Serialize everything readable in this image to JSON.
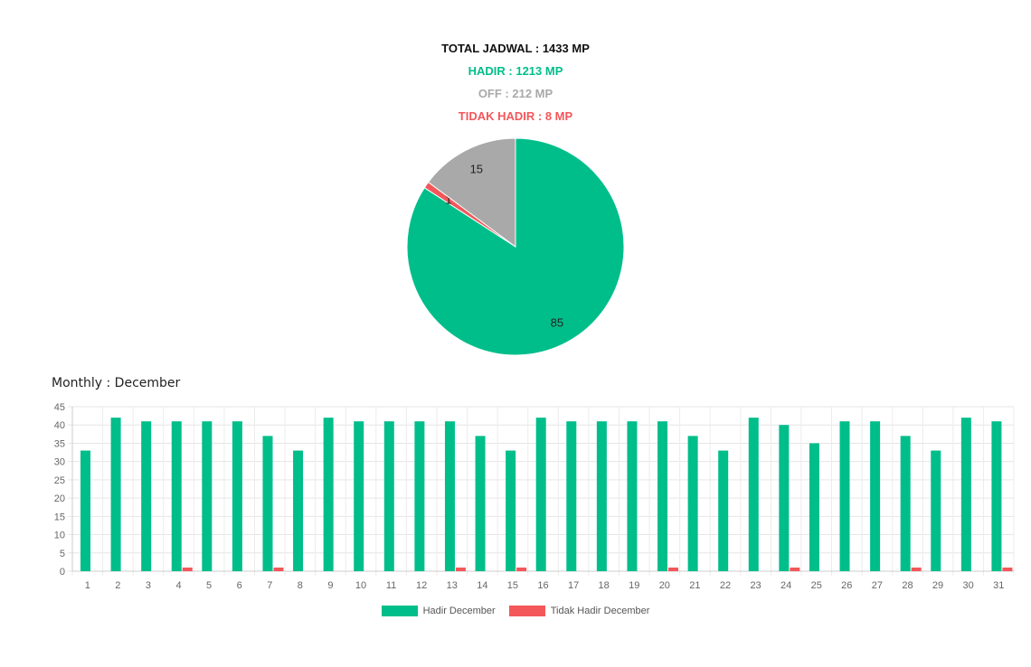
{
  "summary": {
    "total": "TOTAL JADWAL : 1433 MP",
    "hadir": "HADIR : 1213 MP",
    "off": "OFF : 212 MP",
    "tidak_hadir": "TIDAK HADIR : 8 MP"
  },
  "monthly_title": "Monthly : December",
  "colors": {
    "hadir": "#00BE8A",
    "off": "#A9A9A9",
    "tidak_hadir": "#F3575A",
    "total": "#111111"
  },
  "chart_data": [
    {
      "type": "pie",
      "slices": [
        {
          "label": "Hadir",
          "value": 85,
          "color": "#00BE8A"
        },
        {
          "label": "Tidak Hadir",
          "value": 1,
          "color": "#F3575A"
        },
        {
          "label": "Off",
          "value": 15,
          "color": "#A9A9A9"
        }
      ]
    },
    {
      "type": "bar",
      "categories": [
        "1",
        "2",
        "3",
        "4",
        "5",
        "6",
        "7",
        "8",
        "9",
        "10",
        "11",
        "12",
        "13",
        "14",
        "15",
        "16",
        "17",
        "18",
        "19",
        "20",
        "21",
        "22",
        "23",
        "24",
        "25",
        "26",
        "27",
        "28",
        "29",
        "30",
        "31"
      ],
      "series": [
        {
          "name": "Hadir December",
          "color": "#00BE8A",
          "values": [
            33,
            42,
            41,
            41,
            41,
            41,
            37,
            33,
            42,
            41,
            41,
            41,
            41,
            37,
            33,
            42,
            41,
            41,
            41,
            41,
            37,
            33,
            42,
            40,
            35,
            41,
            41,
            37,
            33,
            42,
            41
          ]
        },
        {
          "name": "Tidak Hadir December",
          "color": "#F3575A",
          "values": [
            0,
            0,
            0,
            1,
            0,
            0,
            1,
            0,
            0,
            0,
            0,
            0,
            1,
            0,
            1,
            0,
            0,
            0,
            0,
            1,
            0,
            0,
            0,
            1,
            0,
            0,
            0,
            1,
            0,
            0,
            1
          ]
        }
      ],
      "ylim": [
        0,
        45
      ],
      "yticks": [
        0,
        5,
        10,
        15,
        20,
        25,
        30,
        35,
        40,
        45
      ],
      "grid": true,
      "legend": "bottom"
    }
  ]
}
